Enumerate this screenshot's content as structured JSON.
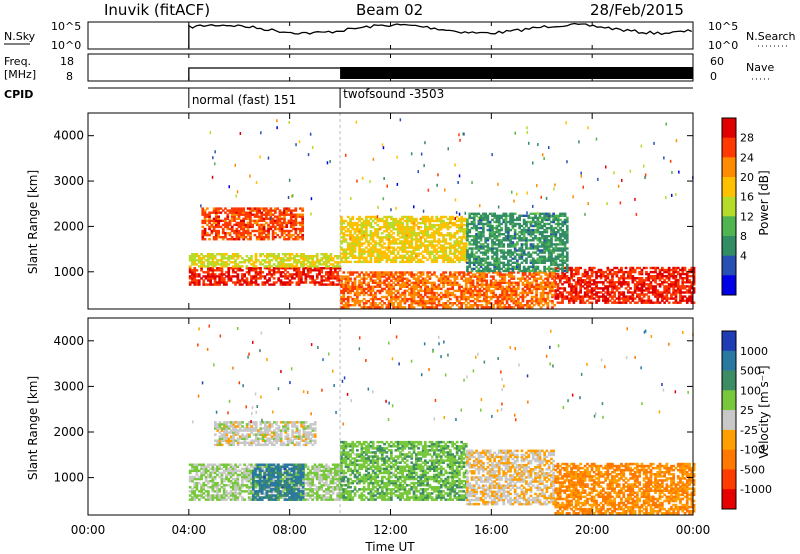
{
  "header": {
    "title": "Inuvik (fitACF)",
    "beam": "Beam 02",
    "date": "28/Feb/2015"
  },
  "top_panels": {
    "nsky_label": "N.Sky",
    "nsky_ticks": [
      "10^5",
      "10^0"
    ],
    "nsearch_label": "N.Search",
    "nsearch_ticks": [
      "10^5",
      "10^0"
    ],
    "freq_label_line1": "Freq.",
    "freq_label_line2": "[MHz]",
    "freq_ticks": [
      "18",
      "8"
    ],
    "nave_label": "Nave",
    "nave_ticks": [
      "60",
      "0"
    ],
    "cpid_label": "CPID",
    "cpid_segments": [
      {
        "label": "normal (fast) 151",
        "start_hour": 4.0
      },
      {
        "label": "twofsound -3503",
        "start_hour": 10.0
      }
    ]
  },
  "x_axis": {
    "label": "Time UT",
    "ticks": [
      "00:00",
      "04:00",
      "08:00",
      "12:00",
      "16:00",
      "20:00",
      "00:00"
    ],
    "tick_hours": [
      0,
      4,
      8,
      12,
      16,
      20,
      24
    ]
  },
  "power_colorbar": {
    "label": "Power [dB]",
    "ticks": [
      "28",
      "24",
      "20",
      "16",
      "12",
      "8",
      "4"
    ],
    "colors": [
      "#e00000",
      "#ff3a00",
      "#ff8c00",
      "#ffc000",
      "#b4dc28",
      "#50b450",
      "#328c64",
      "#2850b4",
      "#0000e6"
    ]
  },
  "velocity_colorbar": {
    "label": "Velocity [m s⁻¹]",
    "ticks": [
      "1000",
      "500",
      "100",
      "25",
      "-25",
      "-100",
      "-500",
      "-1000"
    ],
    "colors": [
      "#1e3cb4",
      "#2878a0",
      "#3c8c64",
      "#78c83c",
      "#c8c8c8",
      "#ffa000",
      "#ff7800",
      "#ff3c00",
      "#e60000"
    ]
  },
  "chart_data": {
    "type": "heatmap",
    "title": "Inuvik (fitACF)",
    "subtitle": "Beam 02",
    "xlabel": "Time UT",
    "ylabel": "Slant Range [km]",
    "xlim": [
      0,
      24
    ],
    "ylim": [
      180,
      4500
    ],
    "y_ticks": [
      1000,
      2000,
      3000,
      4000
    ],
    "grid": false,
    "panels": [
      {
        "name": "Power",
        "colorbar_label": "Power [dB]",
        "range": [
          0,
          30
        ],
        "regions": [
          {
            "t": [
              4.0,
              10.0
            ],
            "r": [
              700,
              1100
            ],
            "level": 28
          },
          {
            "t": [
              4.0,
              10.0
            ],
            "r": [
              1100,
              1400
            ],
            "level": 16
          },
          {
            "t": [
              4.5,
              8.5
            ],
            "r": [
              1700,
              2400
            ],
            "level": 26
          },
          {
            "t": [
              10.0,
              15.0
            ],
            "r": [
              1200,
              2200
            ],
            "level": 18
          },
          {
            "t": [
              10.0,
              18.5
            ],
            "r": [
              200,
              1000
            ],
            "level": 24
          },
          {
            "t": [
              18.5,
              24.0
            ],
            "r": [
              300,
              1100
            ],
            "level": 28
          },
          {
            "t": [
              15.0,
              19.0
            ],
            "r": [
              1000,
              2300
            ],
            "level": 8
          }
        ]
      },
      {
        "name": "Velocity",
        "colorbar_label": "Velocity [m s⁻¹]",
        "range": [
          -1000,
          1000
        ],
        "regions": [
          {
            "t": [
              4.0,
              10.0
            ],
            "r": [
              500,
              1300
            ],
            "level": 150
          },
          {
            "t": [
              6.5,
              8.5
            ],
            "r": [
              500,
              1300
            ],
            "level": 700
          },
          {
            "t": [
              5.0,
              9.0
            ],
            "r": [
              1700,
              2200
            ],
            "level": 0
          },
          {
            "t": [
              10.0,
              15.0
            ],
            "r": [
              500,
              1800
            ],
            "level": 300
          },
          {
            "t": [
              15.0,
              18.5
            ],
            "r": [
              400,
              1600
            ],
            "level": -100
          },
          {
            "t": [
              18.5,
              24.0
            ],
            "r": [
              200,
              1300
            ],
            "level": -400
          }
        ]
      }
    ]
  }
}
